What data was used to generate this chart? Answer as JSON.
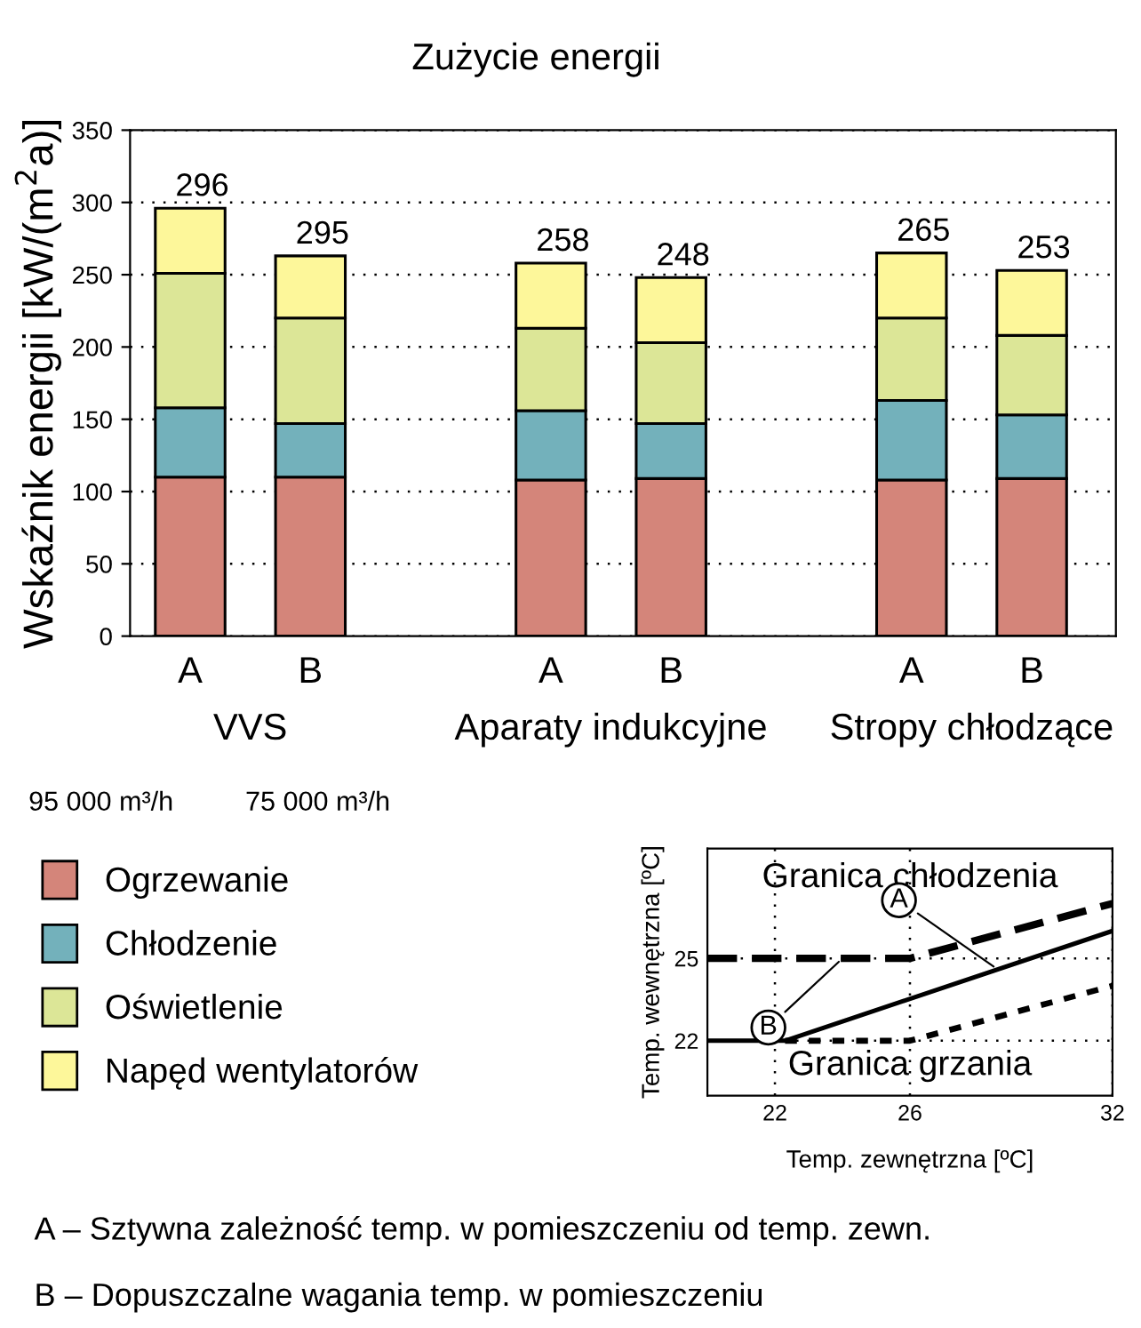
{
  "chart_data": [
    {
      "type": "bar",
      "title": "Zużycie energii",
      "ylabel": "Wskaźnik energii [kW/(m$^{2}$a)]",
      "categories": [
        "A",
        "B",
        null,
        "A",
        "B",
        null,
        "A",
        "B"
      ],
      "stacked": true,
      "series": [
        {
          "name": "Ogrzewanie",
          "color": "#d4857a",
          "values": [
            110,
            110,
            null,
            108,
            109,
            null,
            108,
            109
          ]
        },
        {
          "name": "Chłodzenie",
          "color": "#73b1bb",
          "values": [
            48,
            37,
            null,
            48,
            38,
            null,
            55,
            44
          ]
        },
        {
          "name": "Oświetlenie",
          "color": "#dce697",
          "values": [
            93,
            73,
            null,
            57,
            56,
            null,
            57,
            55
          ]
        },
        {
          "name": "Napęd wentylatorów",
          "color": "#fdf79a",
          "values": [
            45,
            43,
            null,
            45,
            45,
            null,
            45,
            45
          ]
        }
      ],
      "totals": [
        "296",
        null,
        null,
        "258",
        "248",
        null,
        "265",
        "253"
      ],
      "ylim": [
        0,
        350
      ],
      "yticks": [
        0,
        50,
        100,
        150,
        200,
        250,
        300,
        350
      ],
      "grid": "y",
      "legend": "bottom left",
      "annotations": [
        "VVS",
        "Aparaty indukcyjne",
        "Stropy chłodzące",
        "95 000 m³/h",
        "75 000 m³/h",
        {
          "text": "295",
          "y": 263
        }
      ]
    },
    {
      "type": "line",
      "xlabel": "Temp. zewnętrzna [ºC]",
      "ylabel": "Temp. wewnętrzna [ºC]",
      "series": [
        {
          "color": "#000000",
          "line_style": "dashed",
          "x": [
            20,
            26,
            32
          ],
          "values": [
            25,
            25,
            27
          ]
        },
        {
          "color": "#000000",
          "line_style": "solid",
          "x": [
            20,
            22.3,
            32
          ],
          "values": [
            22,
            22,
            26
          ]
        },
        {
          "color": "#000000",
          "line_style": "dotted",
          "x": [
            22.3,
            26,
            32
          ],
          "values": [
            22,
            22,
            24
          ]
        }
      ],
      "xlim": [
        20,
        32
      ],
      "xticks": [
        22,
        26,
        32
      ],
      "ylim": [
        20,
        29
      ],
      "yticks": [
        22,
        25
      ],
      "grid": true,
      "legend": false,
      "marker": "none",
      "annotations": [
        "Granica chłodzenia",
        "Granica grzania",
        {
          "text": "A",
          "x": 28.6,
          "y": 24.6
        },
        {
          "text": "B",
          "x": 24,
          "y": 25
        },
        "A – Sztywna zależność temp. w pomieszczeniu od temp. zewn.",
        "B – Dopuszczalne wagania temp. w pomieszczeniu"
      ]
    }
  ]
}
